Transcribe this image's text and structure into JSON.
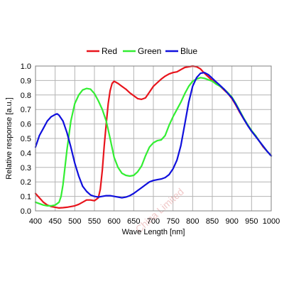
{
  "chart_data": {
    "type": "line",
    "title": "",
    "xlabel": "Wave Length [nm]",
    "ylabel": "Relative response [a.u.]",
    "xlim": [
      400,
      1000
    ],
    "ylim": [
      0,
      1.0
    ],
    "x_ticks": [
      "400",
      "450",
      "500",
      "550",
      "600",
      "650",
      "700",
      "750",
      "800",
      "850",
      "900",
      "950",
      "1000"
    ],
    "y_ticks": [
      "0.0",
      "0.1",
      "0.2",
      "0.3",
      "0.4",
      "0.5",
      "0.6",
      "0.7",
      "0.8",
      "0.9",
      "1.0"
    ],
    "grid": true,
    "legend_position": "top",
    "watermark": "China Limited",
    "series": [
      {
        "name": "Red",
        "color": "#e8141c",
        "points": [
          [
            400,
            0.12
          ],
          [
            410,
            0.09
          ],
          [
            420,
            0.06
          ],
          [
            430,
            0.04
          ],
          [
            440,
            0.03
          ],
          [
            450,
            0.025
          ],
          [
            460,
            0.02
          ],
          [
            470,
            0.022
          ],
          [
            480,
            0.025
          ],
          [
            490,
            0.03
          ],
          [
            500,
            0.035
          ],
          [
            510,
            0.045
          ],
          [
            520,
            0.06
          ],
          [
            530,
            0.075
          ],
          [
            540,
            0.075
          ],
          [
            550,
            0.07
          ],
          [
            560,
            0.09
          ],
          [
            565,
            0.15
          ],
          [
            570,
            0.28
          ],
          [
            575,
            0.45
          ],
          [
            580,
            0.6
          ],
          [
            585,
            0.74
          ],
          [
            590,
            0.83
          ],
          [
            595,
            0.88
          ],
          [
            600,
            0.895
          ],
          [
            610,
            0.88
          ],
          [
            620,
            0.86
          ],
          [
            630,
            0.84
          ],
          [
            640,
            0.815
          ],
          [
            650,
            0.795
          ],
          [
            660,
            0.775
          ],
          [
            670,
            0.77
          ],
          [
            680,
            0.78
          ],
          [
            690,
            0.82
          ],
          [
            700,
            0.86
          ],
          [
            710,
            0.885
          ],
          [
            720,
            0.91
          ],
          [
            730,
            0.93
          ],
          [
            740,
            0.945
          ],
          [
            750,
            0.955
          ],
          [
            760,
            0.96
          ],
          [
            770,
            0.975
          ],
          [
            780,
            0.99
          ],
          [
            790,
            0.995
          ],
          [
            800,
            1.0
          ],
          [
            810,
            0.995
          ],
          [
            820,
            0.98
          ],
          [
            830,
            0.95
          ],
          [
            840,
            0.925
          ],
          [
            850,
            0.9
          ],
          [
            860,
            0.88
          ],
          [
            870,
            0.86
          ],
          [
            880,
            0.835
          ],
          [
            890,
            0.81
          ],
          [
            900,
            0.775
          ],
          [
            910,
            0.73
          ],
          [
            920,
            0.68
          ],
          [
            930,
            0.635
          ],
          [
            940,
            0.59
          ],
          [
            950,
            0.55
          ],
          [
            960,
            0.52
          ],
          [
            970,
            0.48
          ],
          [
            980,
            0.44
          ],
          [
            990,
            0.41
          ],
          [
            1000,
            0.38
          ]
        ]
      },
      {
        "name": "Green",
        "color": "#33ee33",
        "points": [
          [
            400,
            0.06
          ],
          [
            410,
            0.05
          ],
          [
            420,
            0.04
          ],
          [
            430,
            0.035
          ],
          [
            440,
            0.035
          ],
          [
            450,
            0.04
          ],
          [
            460,
            0.06
          ],
          [
            465,
            0.1
          ],
          [
            470,
            0.18
          ],
          [
            475,
            0.3
          ],
          [
            480,
            0.42
          ],
          [
            490,
            0.62
          ],
          [
            500,
            0.74
          ],
          [
            510,
            0.8
          ],
          [
            520,
            0.835
          ],
          [
            530,
            0.845
          ],
          [
            540,
            0.84
          ],
          [
            550,
            0.81
          ],
          [
            560,
            0.76
          ],
          [
            570,
            0.7
          ],
          [
            580,
            0.62
          ],
          [
            590,
            0.5
          ],
          [
            600,
            0.37
          ],
          [
            610,
            0.3
          ],
          [
            620,
            0.26
          ],
          [
            630,
            0.245
          ],
          [
            640,
            0.24
          ],
          [
            650,
            0.245
          ],
          [
            660,
            0.27
          ],
          [
            670,
            0.31
          ],
          [
            680,
            0.38
          ],
          [
            690,
            0.44
          ],
          [
            700,
            0.47
          ],
          [
            710,
            0.485
          ],
          [
            720,
            0.49
          ],
          [
            730,
            0.52
          ],
          [
            740,
            0.59
          ],
          [
            750,
            0.65
          ],
          [
            760,
            0.7
          ],
          [
            770,
            0.75
          ],
          [
            780,
            0.81
          ],
          [
            790,
            0.86
          ],
          [
            800,
            0.895
          ],
          [
            810,
            0.91
          ],
          [
            820,
            0.92
          ],
          [
            830,
            0.915
          ],
          [
            840,
            0.905
          ],
          [
            850,
            0.895
          ],
          [
            860,
            0.875
          ],
          [
            870,
            0.86
          ],
          [
            880,
            0.84
          ],
          [
            890,
            0.815
          ],
          [
            900,
            0.785
          ],
          [
            910,
            0.74
          ],
          [
            920,
            0.69
          ],
          [
            930,
            0.64
          ],
          [
            940,
            0.595
          ],
          [
            950,
            0.555
          ],
          [
            960,
            0.52
          ],
          [
            970,
            0.48
          ],
          [
            980,
            0.445
          ],
          [
            990,
            0.41
          ],
          [
            1000,
            0.38
          ]
        ]
      },
      {
        "name": "Blue",
        "color": "#1010dd",
        "points": [
          [
            400,
            0.44
          ],
          [
            410,
            0.52
          ],
          [
            420,
            0.57
          ],
          [
            430,
            0.62
          ],
          [
            440,
            0.65
          ],
          [
            450,
            0.665
          ],
          [
            455,
            0.67
          ],
          [
            460,
            0.66
          ],
          [
            470,
            0.62
          ],
          [
            480,
            0.54
          ],
          [
            490,
            0.44
          ],
          [
            500,
            0.33
          ],
          [
            510,
            0.24
          ],
          [
            520,
            0.17
          ],
          [
            530,
            0.135
          ],
          [
            540,
            0.11
          ],
          [
            550,
            0.1
          ],
          [
            560,
            0.095
          ],
          [
            570,
            0.1
          ],
          [
            580,
            0.105
          ],
          [
            590,
            0.105
          ],
          [
            600,
            0.1
          ],
          [
            610,
            0.095
          ],
          [
            620,
            0.09
          ],
          [
            630,
            0.095
          ],
          [
            640,
            0.105
          ],
          [
            650,
            0.12
          ],
          [
            660,
            0.14
          ],
          [
            670,
            0.16
          ],
          [
            680,
            0.18
          ],
          [
            690,
            0.2
          ],
          [
            700,
            0.21
          ],
          [
            710,
            0.215
          ],
          [
            720,
            0.22
          ],
          [
            730,
            0.23
          ],
          [
            740,
            0.25
          ],
          [
            750,
            0.29
          ],
          [
            760,
            0.35
          ],
          [
            770,
            0.45
          ],
          [
            780,
            0.6
          ],
          [
            790,
            0.75
          ],
          [
            800,
            0.86
          ],
          [
            810,
            0.92
          ],
          [
            820,
            0.95
          ],
          [
            830,
            0.955
          ],
          [
            840,
            0.94
          ],
          [
            850,
            0.915
          ],
          [
            860,
            0.89
          ],
          [
            870,
            0.865
          ],
          [
            880,
            0.84
          ],
          [
            890,
            0.81
          ],
          [
            900,
            0.78
          ],
          [
            910,
            0.735
          ],
          [
            920,
            0.685
          ],
          [
            930,
            0.635
          ],
          [
            940,
            0.59
          ],
          [
            950,
            0.55
          ],
          [
            960,
            0.515
          ],
          [
            970,
            0.48
          ],
          [
            980,
            0.445
          ],
          [
            990,
            0.41
          ],
          [
            1000,
            0.38
          ]
        ]
      }
    ]
  }
}
